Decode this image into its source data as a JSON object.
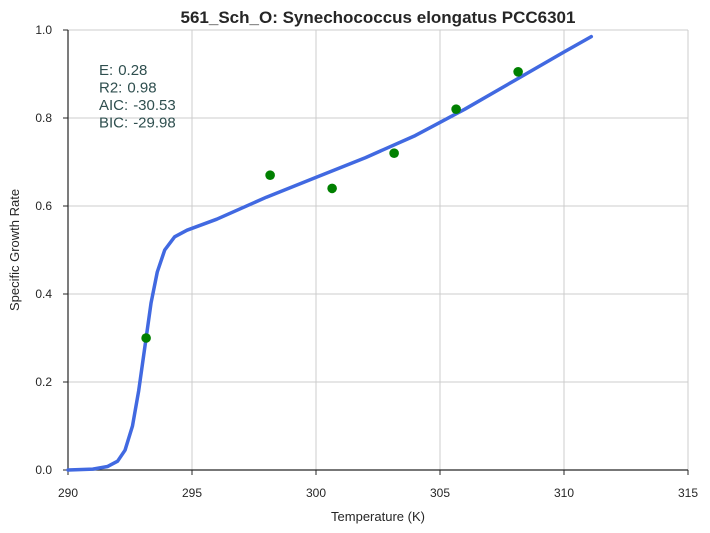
{
  "chart_data": {
    "type": "scatter",
    "title": "561_Sch_O: Synechococcus elongatus PCC6301",
    "xlabel": "Temperature (K)",
    "ylabel": "Specific Growth Rate",
    "xlim": [
      290,
      315
    ],
    "ylim": [
      0.0,
      1.0
    ],
    "x_ticks": [
      "290",
      "295",
      "300",
      "305",
      "310",
      "315"
    ],
    "y_ticks": [
      "0.0",
      "0.2",
      "0.4",
      "0.6",
      "0.8",
      "1.0"
    ],
    "grid": true,
    "series": [
      {
        "type": "scatter",
        "color": "#008000",
        "points": [
          {
            "x": 293.15,
            "y": 0.3
          },
          {
            "x": 298.15,
            "y": 0.67
          },
          {
            "x": 300.65,
            "y": 0.64
          },
          {
            "x": 303.15,
            "y": 0.72
          },
          {
            "x": 305.65,
            "y": 0.82
          },
          {
            "x": 308.15,
            "y": 0.905
          }
        ]
      },
      {
        "type": "line",
        "color": "#4169e1",
        "points": [
          {
            "x": 290.0,
            "y": 0.0
          },
          {
            "x": 291.0,
            "y": 0.002
          },
          {
            "x": 291.6,
            "y": 0.008
          },
          {
            "x": 292.0,
            "y": 0.02
          },
          {
            "x": 292.3,
            "y": 0.045
          },
          {
            "x": 292.6,
            "y": 0.1
          },
          {
            "x": 292.85,
            "y": 0.18
          },
          {
            "x": 293.0,
            "y": 0.24
          },
          {
            "x": 293.15,
            "y": 0.3
          },
          {
            "x": 293.35,
            "y": 0.38
          },
          {
            "x": 293.6,
            "y": 0.45
          },
          {
            "x": 293.9,
            "y": 0.5
          },
          {
            "x": 294.3,
            "y": 0.53
          },
          {
            "x": 294.8,
            "y": 0.545
          },
          {
            "x": 296.0,
            "y": 0.57
          },
          {
            "x": 298.0,
            "y": 0.62
          },
          {
            "x": 300.0,
            "y": 0.665
          },
          {
            "x": 302.0,
            "y": 0.71
          },
          {
            "x": 304.0,
            "y": 0.76
          },
          {
            "x": 306.0,
            "y": 0.82
          },
          {
            "x": 308.0,
            "y": 0.885
          },
          {
            "x": 310.0,
            "y": 0.95
          },
          {
            "x": 311.1,
            "y": 0.985
          }
        ]
      }
    ],
    "annotations": [
      {
        "label": "E:",
        "value": "0.28"
      },
      {
        "label": "R2:",
        "value": "0.98"
      },
      {
        "label": "AIC:",
        "value": "-30.53"
      },
      {
        "label": "BIC:",
        "value": "-29.98"
      }
    ]
  }
}
